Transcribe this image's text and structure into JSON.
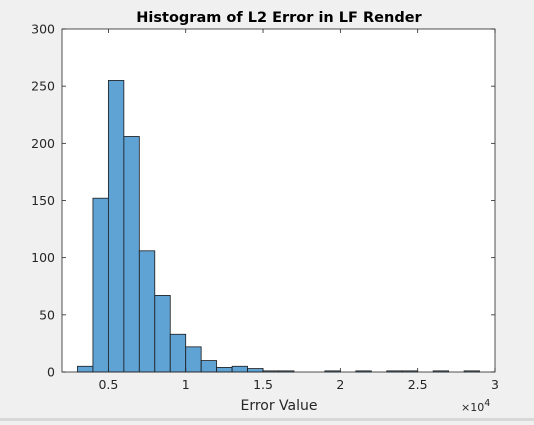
{
  "chart_data": {
    "type": "bar",
    "title": "Histogram of L2 Error in LF Render",
    "xlabel": "Error Value",
    "ylabel": "",
    "x_exponent_label": "×10",
    "x_exponent_power": "4",
    "xlim": [
      0.2,
      3.0
    ],
    "ylim": [
      0,
      300
    ],
    "x_ticks": [
      0.5,
      1,
      1.5,
      2,
      2.5,
      3
    ],
    "x_tick_labels": [
      "0.5",
      "1",
      "1.5",
      "2",
      "2.5",
      "3"
    ],
    "y_ticks": [
      0,
      50,
      100,
      150,
      200,
      250,
      300
    ],
    "y_tick_labels": [
      "0",
      "50",
      "100",
      "150",
      "200",
      "250",
      "300"
    ],
    "bin_width": 0.1,
    "bins": [
      {
        "x0": 0.3,
        "x1": 0.4,
        "count": 5
      },
      {
        "x0": 0.4,
        "x1": 0.5,
        "count": 152
      },
      {
        "x0": 0.5,
        "x1": 0.6,
        "count": 255
      },
      {
        "x0": 0.6,
        "x1": 0.7,
        "count": 206
      },
      {
        "x0": 0.7,
        "x1": 0.8,
        "count": 106
      },
      {
        "x0": 0.8,
        "x1": 0.9,
        "count": 67
      },
      {
        "x0": 0.9,
        "x1": 1.0,
        "count": 33
      },
      {
        "x0": 1.0,
        "x1": 1.1,
        "count": 22
      },
      {
        "x0": 1.1,
        "x1": 1.2,
        "count": 10
      },
      {
        "x0": 1.2,
        "x1": 1.3,
        "count": 4
      },
      {
        "x0": 1.3,
        "x1": 1.4,
        "count": 5
      },
      {
        "x0": 1.4,
        "x1": 1.5,
        "count": 3
      },
      {
        "x0": 1.5,
        "x1": 1.6,
        "count": 1
      },
      {
        "x0": 1.6,
        "x1": 1.7,
        "count": 1
      },
      {
        "x0": 1.9,
        "x1": 2.0,
        "count": 1
      },
      {
        "x0": 2.1,
        "x1": 2.2,
        "count": 1
      },
      {
        "x0": 2.3,
        "x1": 2.4,
        "count": 1
      },
      {
        "x0": 2.4,
        "x1": 2.5,
        "count": 1
      },
      {
        "x0": 2.6,
        "x1": 2.7,
        "count": 1
      },
      {
        "x0": 2.8,
        "x1": 2.9,
        "count": 1
      }
    ],
    "grid": false,
    "bar_color": "#5fa2d4",
    "edge_color": "#1a1a1a"
  }
}
